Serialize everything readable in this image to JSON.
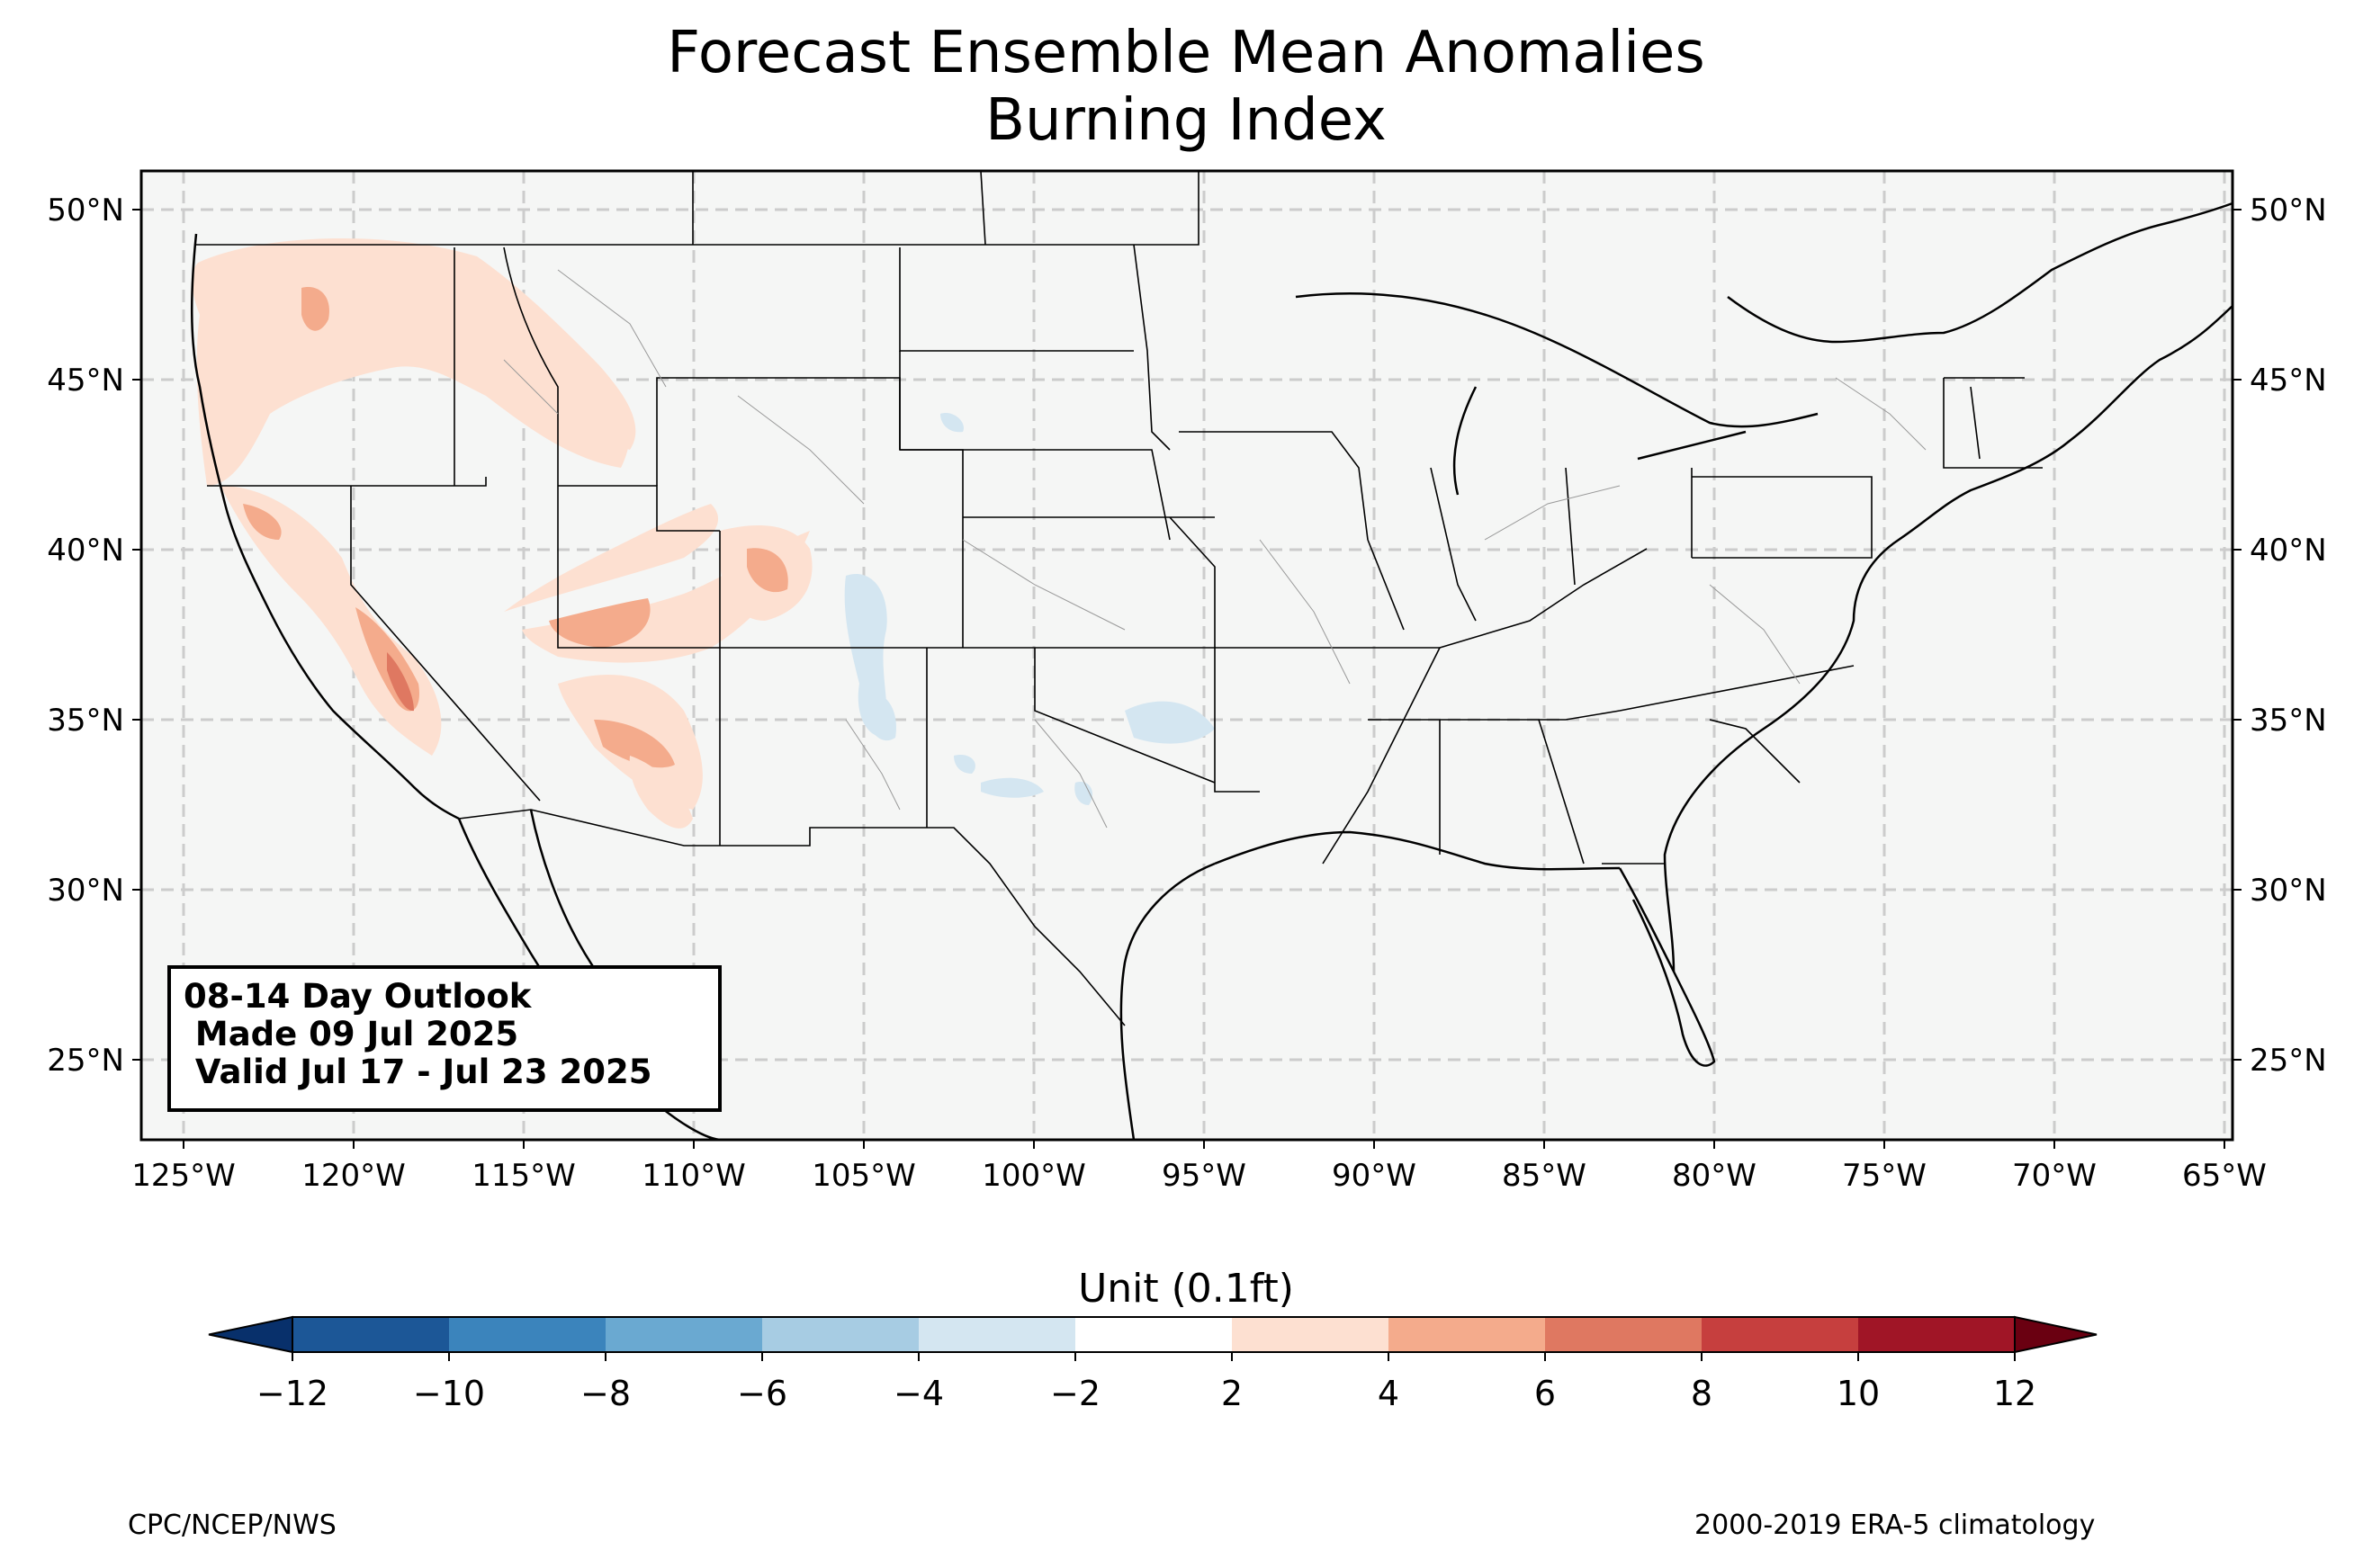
{
  "title": "Forecast Ensemble Mean Anomalies",
  "subtitle": "Burning Index",
  "map": {
    "region": "CONUS",
    "lon_range": [
      -126.3,
      -64.8
    ],
    "lat_range": [
      22.8,
      51.3
    ],
    "x_ticks": [
      "125°W",
      "120°W",
      "115°W",
      "110°W",
      "105°W",
      "100°W",
      "95°W",
      "90°W",
      "85°W",
      "80°W",
      "75°W",
      "70°W",
      "65°W"
    ],
    "y_ticks": [
      "50°N",
      "45°N",
      "40°N",
      "35°N",
      "30°N",
      "25°N"
    ],
    "grid": "dashed",
    "land_color": "#f5f6f5",
    "border_color": "#000000"
  },
  "outlook_box": {
    "line1": "08-14 Day Outlook",
    "line2": " Made 09 Jul 2025",
    "line3": " Valid Jul 17 - Jul 23 2025"
  },
  "colorbar": {
    "label": "Unit (0.1ft)",
    "ticks": [
      "−12",
      "−10",
      "−8",
      "−6",
      "−4",
      "−2",
      "2",
      "4",
      "6",
      "8",
      "10",
      "12"
    ],
    "colors": [
      "#08306b",
      "#1c5797",
      "#3b84bc",
      "#6aa9d1",
      "#a7cce3",
      "#d4e6f1",
      "#ffffff",
      "#fde0d1",
      "#f4ab8c",
      "#df7861",
      "#c63f3e",
      "#a01526",
      "#6a0011"
    ]
  },
  "anomalies": [
    {
      "region": "Pacific Northwest / Idaho",
      "sign": "positive",
      "max_class": "2 to 4"
    },
    {
      "region": "California Central Valley / Sierra",
      "sign": "positive",
      "max_class": "6 to 8"
    },
    {
      "region": "Utah / western Colorado",
      "sign": "positive",
      "max_class": "4 to 6"
    },
    {
      "region": "Arizona",
      "sign": "positive",
      "max_class": "4 to 6"
    },
    {
      "region": "eastern New Mexico / Oklahoma / Texas",
      "sign": "negative",
      "max_class": "-4 to -2"
    }
  ],
  "footer": {
    "left": "CPC/NCEP/NWS",
    "right": "2000-2019 ERA-5 climatology"
  }
}
